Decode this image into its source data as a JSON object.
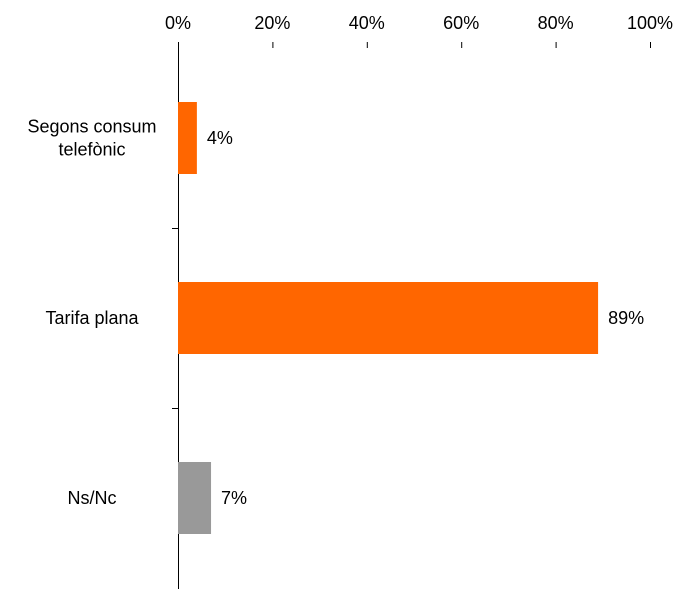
{
  "chart_data": {
    "type": "bar",
    "orientation": "horizontal",
    "categories": [
      [
        "Segons consum",
        "telefònic"
      ],
      [
        "Tarifa plana"
      ],
      [
        "Ns/Nc"
      ]
    ],
    "values": [
      4,
      89,
      7
    ],
    "value_labels": [
      "4%",
      "89%",
      "7%"
    ],
    "colors": [
      "#FF6600",
      "#FF6600",
      "#999999"
    ],
    "xlim": [
      0,
      100
    ],
    "x_ticks": [
      0,
      20,
      40,
      60,
      80,
      100
    ],
    "x_tick_labels": [
      "0%",
      "20%",
      "40%",
      "60%",
      "80%",
      "100%"
    ],
    "x_axis_position": "top",
    "grid": false,
    "legend": "none",
    "title": "",
    "xlabel": "",
    "ylabel": ""
  }
}
